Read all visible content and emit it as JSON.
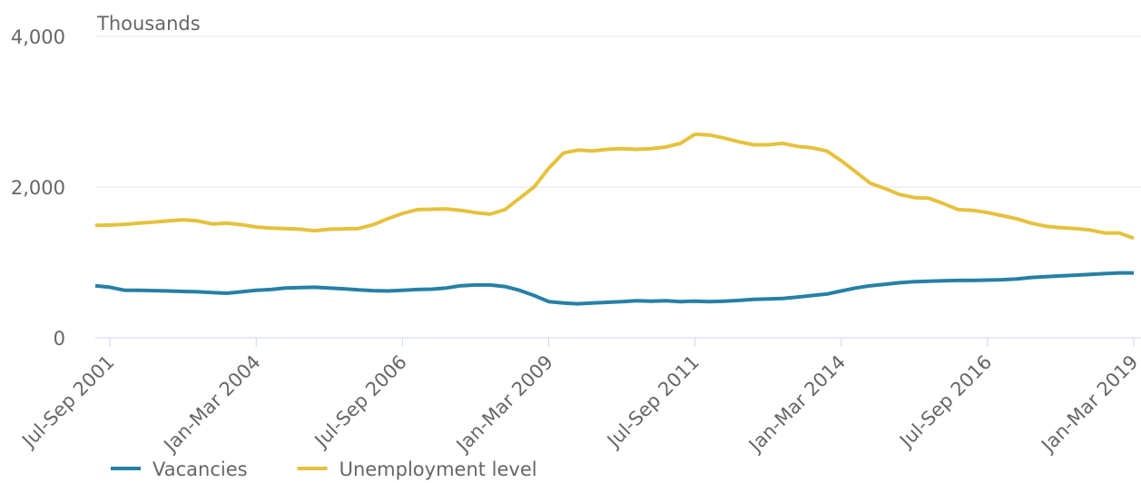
{
  "chart_data": {
    "type": "line",
    "y_label": "Thousands",
    "categories": [
      null,
      "Jul-Sep 2001",
      null,
      null,
      null,
      null,
      null,
      null,
      null,
      null,
      null,
      "Jan-Mar 2004",
      null,
      null,
      null,
      null,
      null,
      null,
      null,
      null,
      null,
      "Jul-Sep 2006",
      null,
      null,
      null,
      null,
      null,
      null,
      null,
      null,
      null,
      "Jan-Mar 2009",
      null,
      null,
      null,
      null,
      null,
      null,
      null,
      null,
      null,
      "Jul-Sep 2011",
      null,
      null,
      null,
      null,
      null,
      null,
      null,
      null,
      null,
      "Jan-Mar 2014",
      null,
      null,
      null,
      null,
      null,
      null,
      null,
      null,
      null,
      "Jul-Sep 2016",
      null,
      null,
      null,
      null,
      null,
      null,
      null,
      null,
      null,
      "Jan-Mar 2019"
    ],
    "series": [
      {
        "name": "Vacancies",
        "color": "#2680a6",
        "values": [
          690,
          670,
          630,
          630,
          625,
          620,
          615,
          610,
          600,
          590,
          610,
          630,
          640,
          660,
          665,
          670,
          660,
          650,
          635,
          625,
          620,
          630,
          640,
          645,
          660,
          690,
          700,
          700,
          680,
          630,
          560,
          480,
          460,
          450,
          460,
          470,
          480,
          490,
          485,
          490,
          480,
          485,
          480,
          485,
          495,
          510,
          515,
          520,
          540,
          560,
          580,
          620,
          660,
          690,
          710,
          730,
          745,
          750,
          755,
          760,
          760,
          765,
          770,
          780,
          800,
          810,
          820,
          830,
          840,
          850,
          860,
          860
        ]
      },
      {
        "name": "Unemployment level",
        "color": "#e6c13d",
        "values": [
          1490,
          1495,
          1505,
          1520,
          1535,
          1550,
          1565,
          1550,
          1510,
          1520,
          1500,
          1470,
          1455,
          1450,
          1440,
          1420,
          1440,
          1445,
          1450,
          1500,
          1580,
          1650,
          1700,
          1705,
          1710,
          1690,
          1660,
          1640,
          1700,
          1850,
          2000,
          2250,
          2450,
          2490,
          2480,
          2500,
          2510,
          2500,
          2510,
          2530,
          2580,
          2700,
          2690,
          2650,
          2600,
          2560,
          2560,
          2580,
          2540,
          2520,
          2480,
          2350,
          2200,
          2050,
          1980,
          1900,
          1860,
          1850,
          1780,
          1700,
          1690,
          1660,
          1620,
          1580,
          1520,
          1480,
          1460,
          1450,
          1430,
          1390,
          1390,
          1320
        ]
      }
    ],
    "ylim": [
      0,
      4000
    ],
    "yticks": [
      0,
      {
        "value": 2000,
        "label": "2,000"
      },
      {
        "value": 4000,
        "label": "4,000"
      }
    ],
    "grid": true,
    "legend": "bottom-left"
  }
}
